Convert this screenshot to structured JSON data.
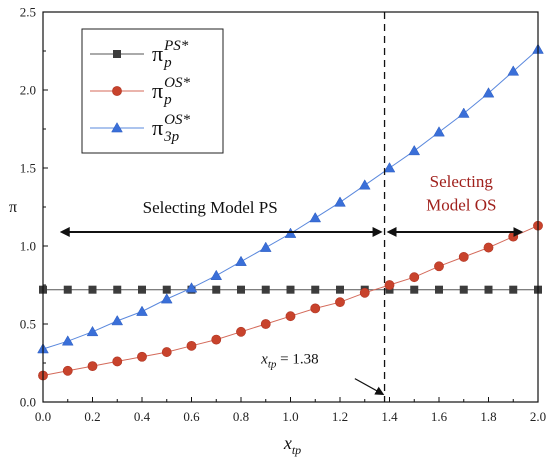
{
  "chart_data": {
    "type": "line",
    "title": "",
    "xlabel_base": "x",
    "xlabel_sub": "tp",
    "ylabel": "π",
    "xlim": [
      0,
      2
    ],
    "ylim": [
      0,
      2.5
    ],
    "x_ticks": [
      "0.0",
      "0.2",
      "0.4",
      "0.6",
      "0.8",
      "1.0",
      "1.2",
      "1.4",
      "1.6",
      "1.8",
      "2.0"
    ],
    "y_ticks": [
      "0.0",
      "0.5",
      "1.0",
      "1.5",
      "2.0",
      "2.5"
    ],
    "x": [
      0,
      0.1,
      0.2,
      0.3,
      0.4,
      0.5,
      0.6,
      0.7,
      0.8,
      0.9,
      1.0,
      1.1,
      1.2,
      1.3,
      1.4,
      1.5,
      1.6,
      1.7,
      1.8,
      1.9,
      2.0
    ],
    "series": [
      {
        "key": "ps",
        "legend_base": "π",
        "legend_sub": "p",
        "legend_sup": "PS*",
        "marker": "square",
        "color": "#3c3c3c",
        "line_color": "#555555",
        "values": [
          0.72,
          0.72,
          0.72,
          0.72,
          0.72,
          0.72,
          0.72,
          0.72,
          0.72,
          0.72,
          0.72,
          0.72,
          0.72,
          0.72,
          0.72,
          0.72,
          0.72,
          0.72,
          0.72,
          0.72,
          0.72
        ]
      },
      {
        "key": "os_p",
        "legend_base": "π",
        "legend_sub": "p",
        "legend_sup": "OS*",
        "marker": "circle",
        "color": "#c8432c",
        "line_color": "#d46a5a",
        "values": [
          0.17,
          0.2,
          0.23,
          0.26,
          0.29,
          0.32,
          0.36,
          0.4,
          0.45,
          0.5,
          0.55,
          0.6,
          0.64,
          0.7,
          0.75,
          0.8,
          0.87,
          0.93,
          0.99,
          1.06,
          1.13
        ]
      },
      {
        "key": "os_3p",
        "legend_base": "π",
        "legend_sub": "3p",
        "legend_sup": "OS*",
        "marker": "triangle",
        "color": "#3a6fd8",
        "line_color": "#5a88dd",
        "values": [
          0.34,
          0.39,
          0.45,
          0.52,
          0.58,
          0.66,
          0.73,
          0.81,
          0.9,
          0.99,
          1.08,
          1.18,
          1.28,
          1.39,
          1.5,
          1.61,
          1.73,
          1.85,
          1.98,
          2.12,
          2.26
        ]
      }
    ],
    "threshold_x": 1.38,
    "annotations": {
      "threshold_label_base": "x",
      "threshold_label_sub": "tp",
      "threshold_label_value": " = 1.38",
      "region_left": "Selecting Model PS",
      "region_right_line1": "Selecting",
      "region_right_line2": "Model OS",
      "region_right_color": "#a0201c",
      "arrow_y": 1.09
    },
    "legend_position": "top-left"
  }
}
